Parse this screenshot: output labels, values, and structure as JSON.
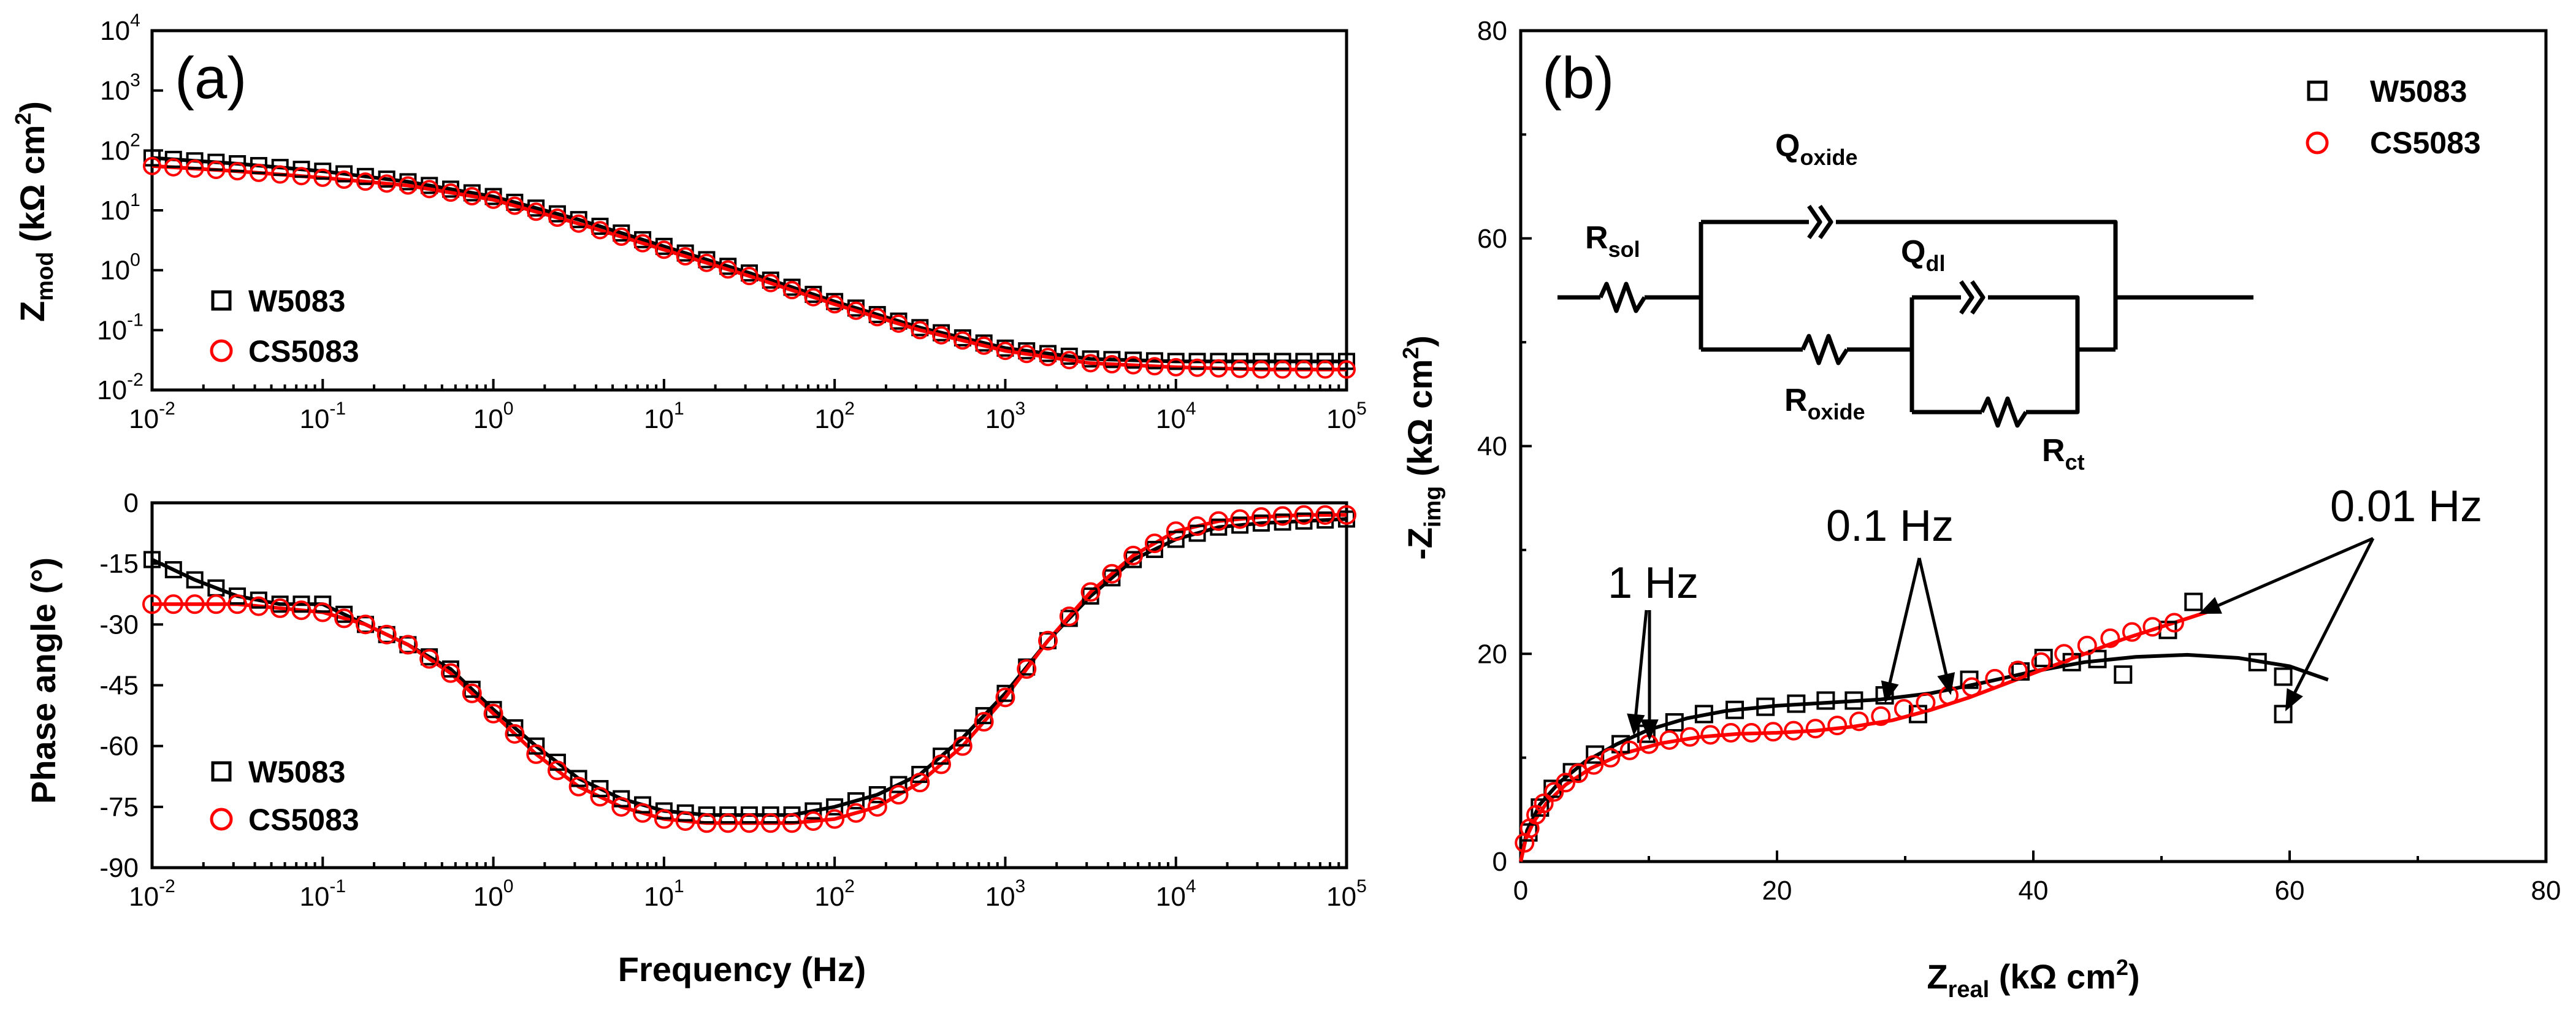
{
  "colors": {
    "series_a": "#000000",
    "series_b": "#ff0000",
    "axis": "#000000"
  },
  "chart_data": [
    {
      "id": "a-top",
      "type": "scatter",
      "panel_label": "(a)",
      "title": "",
      "xlabel": "Frequency (Hz)",
      "xscale": "log",
      "yscale": "log",
      "xlim": [
        0.01,
        100000
      ],
      "ylim": [
        0.01,
        10000
      ],
      "ylabel": {
        "main": "Z",
        "sub": "mod",
        "unit": " (kΩ cm",
        "unit_sup": "2",
        "close": ")"
      },
      "x_ticks": [
        {
          "base": "10",
          "exp": "-2"
        },
        {
          "base": "10",
          "exp": "-1"
        },
        {
          "base": "10",
          "exp": "0"
        },
        {
          "base": "10",
          "exp": "1"
        },
        {
          "base": "10",
          "exp": "2"
        },
        {
          "base": "10",
          "exp": "3"
        },
        {
          "base": "10",
          "exp": "4"
        },
        {
          "base": "10",
          "exp": "5"
        }
      ],
      "y_ticks": [
        {
          "base": "10",
          "exp": "-2"
        },
        {
          "base": "10",
          "exp": "-1"
        },
        {
          "base": "10",
          "exp": "0"
        },
        {
          "base": "10",
          "exp": "1"
        },
        {
          "base": "10",
          "exp": "2"
        },
        {
          "base": "10",
          "exp": "3"
        },
        {
          "base": "10",
          "exp": "4"
        }
      ],
      "legend": [
        "W5083",
        "CS5083"
      ],
      "legend_position": "bottom-left",
      "series": [
        {
          "name": "W5083",
          "marker": "square",
          "color": "#000000",
          "fit_line": true,
          "x": [
            0.01,
            0.0316,
            0.1,
            0.316,
            1,
            3.16,
            10,
            31.6,
            100,
            316,
            1000,
            3162,
            10000,
            31623,
            100000
          ],
          "y": [
            75,
            60,
            45,
            30,
            17,
            7,
            2.5,
            0.9,
            0.3,
            0.11,
            0.05,
            0.033,
            0.03,
            0.03,
            0.03
          ]
        },
        {
          "name": "CS5083",
          "marker": "circle",
          "color": "#ff0000",
          "fit_line": true,
          "x": [
            0.01,
            0.0316,
            0.1,
            0.316,
            1,
            3.16,
            10,
            31.6,
            100,
            316,
            1000,
            3162,
            10000,
            31623,
            100000
          ],
          "y": [
            55,
            45,
            35,
            26,
            15,
            6,
            2.2,
            0.8,
            0.27,
            0.1,
            0.045,
            0.028,
            0.024,
            0.022,
            0.022
          ]
        }
      ]
    },
    {
      "id": "a-bottom",
      "type": "scatter",
      "title": "",
      "xlabel": "Frequency (Hz)",
      "ylabel_text": "Phase angle (°)",
      "xscale": "log",
      "xlim": [
        0.01,
        100000
      ],
      "ylim": [
        -90,
        0
      ],
      "x_ticks": [
        {
          "base": "10",
          "exp": "-2"
        },
        {
          "base": "10",
          "exp": "-1"
        },
        {
          "base": "10",
          "exp": "0"
        },
        {
          "base": "10",
          "exp": "1"
        },
        {
          "base": "10",
          "exp": "2"
        },
        {
          "base": "10",
          "exp": "3"
        },
        {
          "base": "10",
          "exp": "4"
        },
        {
          "base": "10",
          "exp": "5"
        }
      ],
      "y_ticks": [
        "0",
        "-15",
        "-30",
        "-45",
        "-60",
        "-75",
        "-90"
      ],
      "legend": [
        "W5083",
        "CS5083"
      ],
      "legend_position": "bottom-left",
      "series": [
        {
          "name": "W5083",
          "marker": "square",
          "color": "#000000",
          "fit_line": true,
          "x": [
            0.01,
            0.0178,
            0.0316,
            0.0562,
            0.1,
            0.178,
            0.316,
            0.562,
            1,
            1.78,
            3.16,
            5.62,
            10,
            17.8,
            31.6,
            56.2,
            100,
            178,
            316,
            562,
            1000,
            1778,
            3162,
            5623,
            10000,
            17783,
            31623,
            56234,
            100000
          ],
          "y": [
            -14,
            -19,
            -23,
            -25,
            -25,
            -30,
            -35,
            -41,
            -51,
            -60,
            -68,
            -73,
            -76,
            -77,
            -77,
            -77,
            -75,
            -72,
            -67,
            -58,
            -47,
            -34,
            -23,
            -14,
            -9,
            -6,
            -5,
            -4.5,
            -4
          ]
        },
        {
          "name": "CS5083",
          "marker": "circle",
          "color": "#ff0000",
          "fit_line": true,
          "x": [
            0.01,
            0.0178,
            0.0316,
            0.0562,
            0.1,
            0.178,
            0.316,
            0.562,
            1,
            1.78,
            3.16,
            5.62,
            10,
            17.8,
            31.6,
            56.2,
            100,
            178,
            316,
            562,
            1000,
            1778,
            3162,
            5623,
            10000,
            17783,
            31623,
            56234,
            100000
          ],
          "y": [
            -25,
            -25,
            -25,
            -26,
            -27,
            -30,
            -35,
            -42,
            -52,
            -62,
            -70,
            -75,
            -78,
            -79,
            -79,
            -79,
            -78,
            -75,
            -69,
            -60,
            -48,
            -34,
            -22,
            -13,
            -7,
            -4.5,
            -3.5,
            -3,
            -3
          ]
        }
      ]
    },
    {
      "id": "b",
      "type": "scatter",
      "panel_label": "(b)",
      "title": "",
      "xlabel": {
        "main": "Z",
        "sub": "real",
        "unit": " (kΩ cm",
        "unit_sup": "2",
        "close": ")"
      },
      "ylabel": {
        "main": "-Z",
        "sub": "img",
        "unit": " (kΩ cm",
        "unit_sup": "2",
        "close": ")"
      },
      "xlim": [
        0,
        80
      ],
      "ylim": [
        0,
        80
      ],
      "x_ticks": [
        "0",
        "20",
        "40",
        "60",
        "80"
      ],
      "y_ticks": [
        "0",
        "20",
        "40",
        "60",
        "80"
      ],
      "legend": [
        "W5083",
        "CS5083"
      ],
      "legend_position": "top-right",
      "annotations": [
        "1 Hz",
        "0.1 Hz",
        "0.01 Hz"
      ],
      "circuit": {
        "r_sol": {
          "main": "R",
          "sub": "sol"
        },
        "q_oxide": {
          "main": "Q",
          "sub": "oxide"
        },
        "q_dl": {
          "main": "Q",
          "sub": "dl"
        },
        "r_oxide": {
          "main": "R",
          "sub": "oxide"
        },
        "r_ct": {
          "main": "R",
          "sub": "ct"
        }
      },
      "series": [
        {
          "name": "W5083",
          "marker": "square",
          "color": "#000000",
          "fit_line": true,
          "x": [
            0.6,
            1.5,
            2.5,
            4,
            5.8,
            7.8,
            9.8,
            12,
            14.3,
            16.7,
            19.1,
            21.5,
            23.8,
            26,
            28.4,
            31,
            35,
            39,
            40.8,
            43,
            45,
            47,
            50.5,
            52.5,
            57.5,
            59.5,
            59.5
          ],
          "y": [
            2.8,
            5.2,
            7,
            8.6,
            10.3,
            11.3,
            12.3,
            13.4,
            14.2,
            14.6,
            14.9,
            15.2,
            15.5,
            15.5,
            16,
            14.2,
            17.5,
            18.3,
            19.6,
            19.2,
            19.5,
            18,
            22.3,
            25,
            19.2,
            17.8,
            14.2
          ],
          "fit_x": [
            0,
            0.5,
            1.5,
            3,
            5,
            7.5,
            10,
            13,
            16,
            20,
            24,
            28,
            32,
            36,
            40,
            44,
            48,
            52,
            56,
            60,
            63
          ],
          "fit_y": [
            0,
            3,
            5.5,
            7.6,
            9.6,
            11.3,
            12.7,
            13.8,
            14.5,
            15.0,
            15.3,
            15.6,
            16.2,
            17.2,
            18.3,
            19.2,
            19.7,
            19.9,
            19.6,
            18.8,
            17.5
          ]
        },
        {
          "name": "CS5083",
          "marker": "circle",
          "color": "#ff0000",
          "fit_line": true,
          "x": [
            0.3,
            0.7,
            1.2,
            1.8,
            2.6,
            3.5,
            4.5,
            5.7,
            7,
            8.5,
            10,
            11.6,
            13.2,
            14.8,
            16.4,
            18,
            19.7,
            21.3,
            23,
            24.7,
            26.4,
            28.1,
            29.9,
            31.6,
            33.4,
            35.2,
            37,
            38.8,
            40.6,
            42.4,
            44.2,
            46,
            47.7,
            49.3,
            51
          ],
          "y": [
            1.8,
            3.2,
            4.5,
            5.6,
            6.7,
            7.6,
            8.5,
            9.3,
            10,
            10.7,
            11.3,
            11.7,
            12,
            12.2,
            12.4,
            12.4,
            12.5,
            12.6,
            12.8,
            13.1,
            13.5,
            14,
            14.7,
            15.3,
            16,
            16.8,
            17.6,
            18.4,
            19.2,
            20,
            20.8,
            21.5,
            22.1,
            22.6,
            23
          ],
          "fit_x": [
            0,
            0.4,
            1,
            2,
            3.5,
            5.5,
            8,
            11,
            14,
            17,
            20,
            23,
            26,
            29,
            32,
            35,
            38,
            41,
            44,
            47,
            50,
            53,
            54
          ],
          "fit_y": [
            0,
            2.2,
            3.8,
            5.6,
            7.4,
            9.0,
            10.4,
            11.4,
            12.0,
            12.3,
            12.4,
            12.6,
            13.0,
            13.6,
            14.6,
            15.8,
            17.2,
            18.6,
            20.0,
            21.4,
            22.6,
            23.8,
            24.2
          ]
        }
      ]
    }
  ]
}
